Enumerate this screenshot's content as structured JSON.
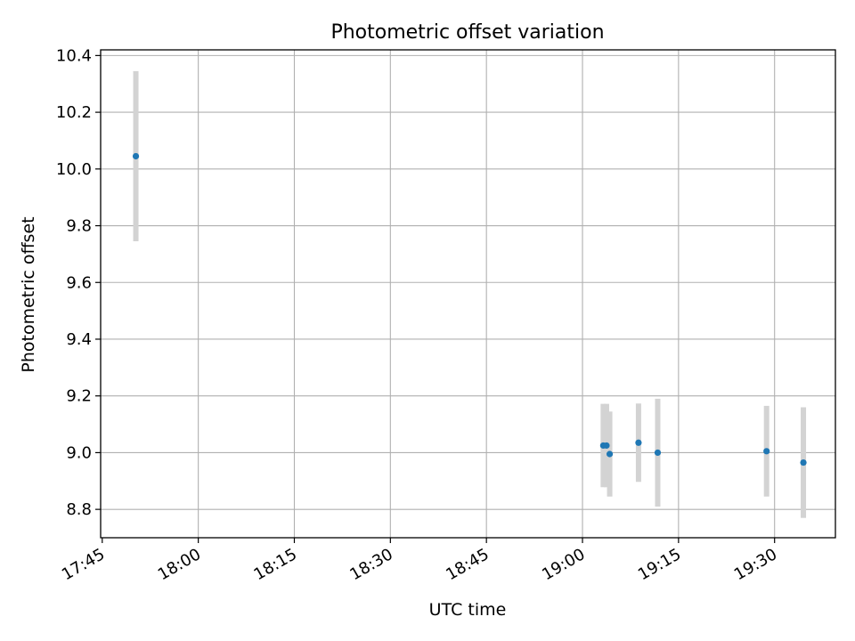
{
  "chart_data": {
    "type": "scatter",
    "title": "Photometric offset variation",
    "xlabel": "UTC time",
    "ylabel": "Photometric offset",
    "x_ticks": [
      "17:45",
      "18:00",
      "18:15",
      "18:30",
      "18:45",
      "19:00",
      "19:15",
      "19:30"
    ],
    "y_ticks": [
      "8.8",
      "9.0",
      "9.2",
      "9.4",
      "9.6",
      "9.8",
      "10.0",
      "10.2",
      "10.4"
    ],
    "xlim": [
      "17:44:45",
      "19:39:30"
    ],
    "ylim": [
      8.7,
      10.42
    ],
    "grid": true,
    "errorbar_color": "#d3d3d3",
    "point_color": "#1f77b4",
    "series": [
      {
        "points": [
          {
            "x": "17:50:15",
            "y": 10.045,
            "err": 0.3
          },
          {
            "x": "19:03:15",
            "y": 9.025,
            "err": 0.147
          },
          {
            "x": "19:03:45",
            "y": 9.025,
            "err": 0.147
          },
          {
            "x": "19:04:15",
            "y": 8.995,
            "err": 0.15
          },
          {
            "x": "19:08:45",
            "y": 9.035,
            "err": 0.138
          },
          {
            "x": "19:11:45",
            "y": 9.0,
            "err": 0.19
          },
          {
            "x": "19:28:45",
            "y": 9.005,
            "err": 0.16
          },
          {
            "x": "19:34:30",
            "y": 8.965,
            "err": 0.195
          }
        ]
      }
    ]
  }
}
